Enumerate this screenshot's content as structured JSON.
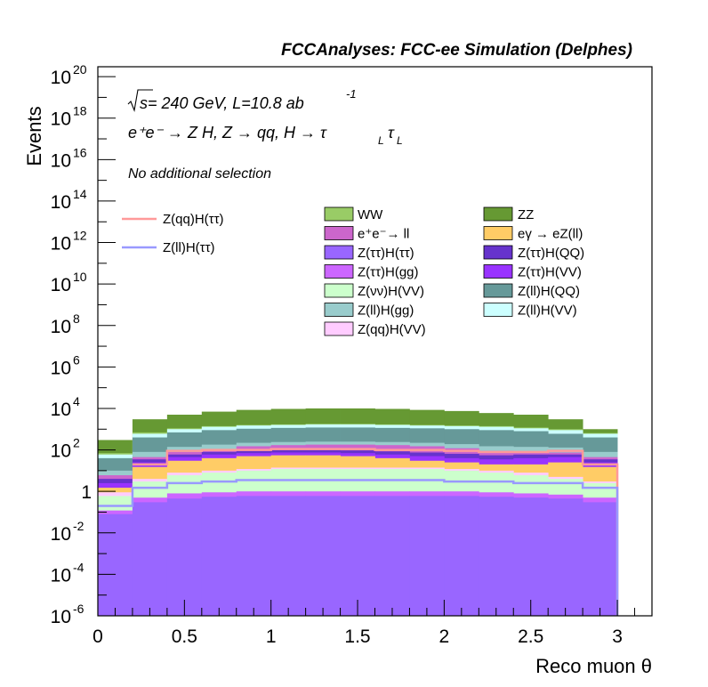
{
  "header": {
    "title": "FCCAnalyses: FCC-ee Simulation (Delphes)"
  },
  "annotations": {
    "energy_prefix": "s",
    "energy_rest": " = 240 GeV, L=10.8 ab",
    "energy_exp": "-1",
    "process": "e⁺e⁻ → Z H, Z → qq, H → τ",
    "process_sub": "L",
    "selection": "No additional selection"
  },
  "chart_data": {
    "type": "area",
    "title": "",
    "xlabel": "Reco muon θ",
    "ylabel": "Events",
    "yscale": "log",
    "xlim": [
      0,
      3.2
    ],
    "ylim": [
      1e-06,
      3e+20
    ],
    "xticks": [
      "0",
      "0.5",
      "1",
      "1.5",
      "2",
      "2.5",
      "3"
    ],
    "yticks": [
      {
        "base": "10",
        "exp": "-6",
        "value": 1e-06
      },
      {
        "base": "10",
        "exp": "-4",
        "value": 0.0001
      },
      {
        "base": "10",
        "exp": "-2",
        "value": 0.01
      },
      {
        "base": "1",
        "exp": "",
        "value": 1
      },
      {
        "base": "10",
        "exp": "2",
        "value": 100.0
      },
      {
        "base": "10",
        "exp": "4",
        "value": 10000.0
      },
      {
        "base": "10",
        "exp": "6",
        "value": 1000000.0
      },
      {
        "base": "10",
        "exp": "8",
        "value": 100000000.0
      },
      {
        "base": "10",
        "exp": "10",
        "value": 10000000000.0
      },
      {
        "base": "10",
        "exp": "12",
        "value": 1000000000000.0
      },
      {
        "base": "10",
        "exp": "14",
        "value": 100000000000000.0
      },
      {
        "base": "10",
        "exp": "16",
        "value": 1e+16
      },
      {
        "base": "10",
        "exp": "18",
        "value": 1e+18
      },
      {
        "base": "10",
        "exp": "20",
        "value": 1e+20
      }
    ],
    "bin_edges": [
      0,
      0.2,
      0.4,
      0.6,
      0.8,
      1.0,
      1.2,
      1.4,
      1.6,
      1.8,
      2.0,
      2.2,
      2.4,
      2.6,
      2.8,
      3.0
    ],
    "stack_cumulative_from_bottom": [
      {
        "name": "Z(ττ)H(ττ)",
        "color": "#9966ff",
        "values": [
          0.08,
          0.3,
          0.45,
          0.55,
          0.6,
          0.6,
          0.6,
          0.6,
          0.6,
          0.6,
          0.6,
          0.55,
          0.5,
          0.45,
          0.3
        ]
      },
      {
        "name": "Z(ττ)H(gg)",
        "color": "#cc66ff",
        "values": [
          0.12,
          0.5,
          0.8,
          0.9,
          1.0,
          1.0,
          1.0,
          1.0,
          1.0,
          1.0,
          1.0,
          0.9,
          0.8,
          0.7,
          0.5
        ]
      },
      {
        "name": "Z(νν)H(VV)",
        "color": "#ccffcc",
        "values": [
          0.6,
          3,
          6,
          8,
          10,
          12,
          12,
          12,
          12,
          12,
          10,
          8,
          6,
          4,
          2.5
        ]
      },
      {
        "name": "Z(qq)H(VV)",
        "color": "#ffccff",
        "values": [
          0.9,
          4,
          8,
          10,
          12,
          14,
          14,
          14,
          14,
          14,
          12,
          10,
          8,
          5,
          3
        ]
      },
      {
        "name": "eγ → eZ(ll)",
        "color": "#ffcc66",
        "values": [
          1.5,
          15,
          30,
          40,
          50,
          55,
          55,
          50,
          40,
          30,
          25,
          20,
          20,
          25,
          15
        ]
      },
      {
        "name": "Z(ττ)H(VV)",
        "color": "#9933ff",
        "values": [
          2.5,
          25,
          45,
          60,
          70,
          75,
          75,
          70,
          60,
          50,
          40,
          35,
          40,
          45,
          25
        ]
      },
      {
        "name": "Z(ττ)H(QQ)",
        "color": "#6633cc",
        "values": [
          4,
          35,
          60,
          80,
          95,
          100,
          100,
          95,
          85,
          75,
          65,
          55,
          60,
          60,
          35
        ]
      },
      {
        "name": "e⁺e⁻→ ll",
        "color": "#cc66cc",
        "values": [
          6,
          45,
          80,
          110,
          150,
          170,
          180,
          180,
          170,
          150,
          120,
          90,
          80,
          75,
          45
        ]
      },
      {
        "name": "Z(ll)H(gg)",
        "color": "#99cccc",
        "values": [
          10,
          80,
          140,
          180,
          220,
          240,
          250,
          250,
          240,
          220,
          190,
          150,
          140,
          130,
          80
        ]
      },
      {
        "name": "Z(ll)H(QQ)",
        "color": "#669999",
        "values": [
          40,
          400,
          700,
          900,
          1050,
          1150,
          1200,
          1200,
          1150,
          1100,
          1000,
          900,
          800,
          600,
          400
        ]
      },
      {
        "name": "Z(ll)H(VV)",
        "color": "#ccffff",
        "values": [
          60,
          600,
          1000,
          1300,
          1500,
          1600,
          1700,
          1700,
          1600,
          1500,
          1400,
          1300,
          1100,
          900,
          600
        ]
      },
      {
        "name": "WW",
        "color": "#99cc66",
        "values": [
          70,
          700,
          1100,
          1400,
          1600,
          1700,
          1800,
          1800,
          1700,
          1600,
          1500,
          1400,
          1200,
          1000,
          650
        ]
      },
      {
        "name": "ZZ",
        "color": "#669933",
        "values": [
          300,
          3000,
          5000,
          7000,
          8500,
          9500,
          10000,
          10000,
          9500,
          8500,
          7500,
          6000,
          5000,
          3000,
          1000
        ]
      }
    ],
    "lines": [
      {
        "name": "Z(qq)H(ττ)",
        "color": "#ff9999",
        "values": [
          null,
          20,
          90,
          100,
          100,
          110,
          110,
          110,
          100,
          100,
          90,
          80,
          80,
          90,
          20
        ]
      },
      {
        "name": "Z(ll)H(ττ)",
        "color": "#9999ff",
        "values": [
          0.2,
          1.5,
          2.5,
          3,
          3.5,
          3.5,
          3.5,
          3.5,
          3.5,
          3.5,
          3,
          3,
          2.5,
          2.5,
          1.5
        ]
      }
    ],
    "legend": {
      "placement": "right",
      "line_entries": [
        "Z(qq)H(ττ)",
        "Z(ll)H(ττ)"
      ],
      "col1": [
        "WW",
        "e⁺e⁻→ ll",
        "Z(ττ)H(ττ)",
        "Z(ττ)H(gg)",
        "Z(νν)H(VV)",
        "Z(ll)H(gg)",
        "Z(qq)H(VV)"
      ],
      "col2": [
        "ZZ",
        "eγ → eZ(ll)",
        "Z(ττ)H(QQ)",
        "Z(ττ)H(VV)",
        "Z(ll)H(QQ)",
        "Z(ll)H(VV)"
      ]
    },
    "grid": false
  }
}
